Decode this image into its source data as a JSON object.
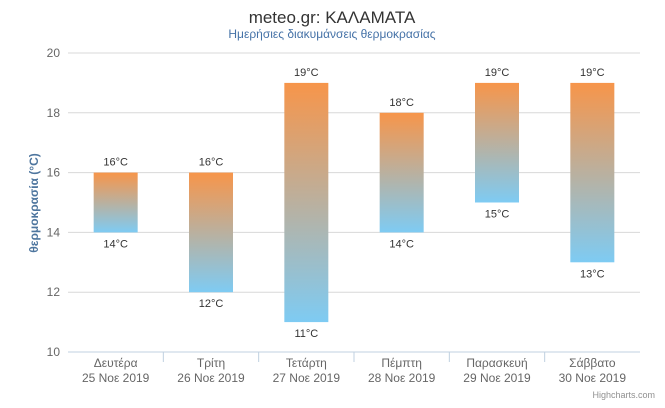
{
  "chart_data": {
    "type": "columnrange",
    "title": "meteo.gr: ΚΑΛΑΜΑΤΑ",
    "subtitle": "Ημερήσιες διακυμάνσεις θερμοκρασίας",
    "ylabel": "θερμοκρασία (°C)",
    "ylim": [
      10,
      20
    ],
    "yticks": [
      "10",
      "12",
      "14",
      "16",
      "18",
      "20"
    ],
    "categories": [
      [
        "Δευτέρα",
        "25 Noε 2019"
      ],
      [
        "Τρίτη",
        "26 Noε 2019"
      ],
      [
        "Τετάρτη",
        "27 Noε 2019"
      ],
      [
        "Πέμπτη",
        "28 Noε 2019"
      ],
      [
        "Παρασκευή",
        "29 Noε 2019"
      ],
      [
        "Σάββατο",
        "30 Noε 2019"
      ]
    ],
    "low": [
      14,
      12,
      11,
      14,
      15,
      13
    ],
    "high": [
      16,
      16,
      19,
      18,
      19,
      19
    ],
    "low_labels": [
      "14°C",
      "12°C",
      "11°C",
      "14°C",
      "15°C",
      "13°C"
    ],
    "high_labels": [
      "16°C",
      "16°C",
      "19°C",
      "18°C",
      "19°C",
      "19°C"
    ],
    "grid": true,
    "legend": "none",
    "colors": {
      "warm": "#f7954a",
      "cold": "#7ecbf3",
      "grid": "#d8d8d8",
      "axis": "#c0d0e0"
    }
  },
  "credits": "Highcharts.com"
}
